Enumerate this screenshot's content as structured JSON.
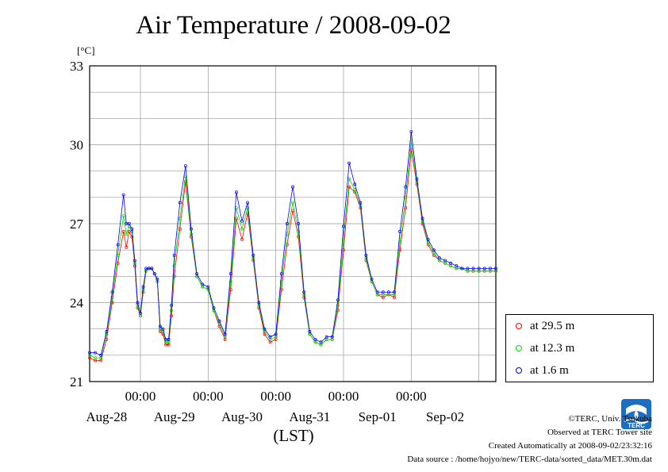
{
  "header": {
    "title": "Air Temperature / 2008-09-02",
    "unit": "[°C]",
    "xlabel": "(LST)"
  },
  "legend": {
    "items": [
      {
        "label": "at 29.5 m",
        "color": "#ff0000"
      },
      {
        "label": "at 12.3 m",
        "color": "#00dd00"
      },
      {
        "label": "at 1.6 m",
        "color": "#0000ff"
      }
    ]
  },
  "footer": {
    "copyright": "©TERC, Univ. Tsukuba",
    "observed": "Observed at TERC Tower site",
    "created": "Created Automatically at 2008-09-02/23:32:16",
    "source": "Data source : /home/hojyo/new/TERC-data/sorted_data/MET.30m.dat"
  },
  "logo": {
    "text": "TERC",
    "color": "#1a6fc0"
  },
  "chart_data": {
    "type": "line",
    "title": "Air Temperature / 2008-09-02",
    "ylabel": "[°C]",
    "xlabel": "(LST)",
    "ylim": [
      21,
      33
    ],
    "yticks": [
      21,
      24,
      27,
      30,
      33
    ],
    "xlim_hours": [
      0,
      144
    ],
    "top_tick_labels": [
      "00:00",
      "00:00",
      "00:00",
      "00:00",
      "00:00"
    ],
    "day_labels": [
      "Aug-28",
      "Aug-29",
      "Aug-30",
      "Aug-31",
      "Sep-01",
      "Sep-02"
    ],
    "grid": true,
    "legend_position": "right-bottom",
    "series": [
      {
        "name": "at 29.5 m",
        "x": [
          0,
          2,
          4,
          6,
          8,
          10,
          12,
          13,
          14,
          15,
          16,
          17,
          18,
          19,
          20,
          21,
          22,
          23,
          24,
          25,
          26,
          27,
          28,
          29,
          30,
          32,
          34,
          36,
          38,
          40,
          42,
          44,
          46,
          48,
          50,
          52,
          54,
          56,
          58,
          60,
          62,
          64,
          66,
          68,
          70,
          72,
          74,
          76,
          78,
          80,
          82,
          84,
          86,
          88,
          90,
          92,
          94,
          96,
          98,
          100,
          102,
          104,
          106,
          108,
          110,
          112,
          114,
          116,
          118,
          120,
          122,
          124,
          126,
          128,
          130,
          132,
          134,
          136,
          138,
          140,
          142,
          144
        ],
        "values": [
          21.9,
          21.8,
          21.8,
          22.6,
          24.0,
          25.5,
          26.7,
          26.1,
          26.7,
          26.5,
          25.4,
          23.8,
          23.5,
          24.4,
          25.2,
          25.3,
          25.3,
          25.1,
          24.8,
          22.9,
          22.8,
          22.4,
          22.4,
          23.5,
          25.0,
          26.8,
          28.6,
          26.5,
          25.0,
          24.6,
          24.5,
          23.7,
          23.1,
          22.6,
          24.5,
          27.2,
          26.4,
          27.4,
          25.6,
          23.8,
          22.8,
          22.5,
          22.6,
          24.5,
          26.2,
          27.5,
          26.5,
          24.2,
          22.8,
          22.5,
          22.4,
          22.6,
          22.6,
          23.7,
          26.0,
          28.4,
          28.2,
          27.6,
          25.6,
          24.8,
          24.3,
          24.2,
          24.3,
          24.2,
          26.0,
          27.6,
          29.8,
          28.5,
          27.0,
          26.2,
          25.8,
          25.6,
          25.5,
          25.4,
          25.3,
          25.3,
          25.2,
          25.2,
          25.2,
          25.2,
          25.2,
          25.2
        ]
      },
      {
        "name": "at 12.3 m",
        "x": [
          0,
          2,
          4,
          6,
          8,
          10,
          12,
          13,
          14,
          15,
          16,
          17,
          18,
          19,
          20,
          21,
          22,
          23,
          24,
          25,
          26,
          27,
          28,
          29,
          30,
          32,
          34,
          36,
          38,
          40,
          42,
          44,
          46,
          48,
          50,
          52,
          54,
          56,
          58,
          60,
          62,
          64,
          66,
          68,
          70,
          72,
          74,
          76,
          78,
          80,
          82,
          84,
          86,
          88,
          90,
          92,
          94,
          96,
          98,
          100,
          102,
          104,
          106,
          108,
          110,
          112,
          114,
          116,
          118,
          120,
          122,
          124,
          126,
          128,
          130,
          132,
          134,
          136,
          138,
          140,
          142,
          144
        ],
        "values": [
          22.0,
          21.9,
          21.9,
          22.8,
          24.2,
          25.8,
          27.3,
          26.6,
          26.9,
          26.7,
          25.5,
          23.9,
          23.5,
          24.5,
          25.2,
          25.3,
          25.3,
          25.1,
          24.8,
          23.0,
          22.9,
          22.5,
          22.5,
          23.7,
          25.4,
          27.2,
          28.8,
          26.6,
          25.0,
          24.6,
          24.5,
          23.7,
          23.2,
          22.7,
          24.8,
          27.6,
          26.8,
          27.6,
          25.7,
          23.9,
          22.9,
          22.6,
          22.7,
          24.8,
          26.6,
          27.8,
          26.7,
          24.3,
          22.8,
          22.5,
          22.4,
          22.6,
          22.6,
          23.9,
          26.4,
          28.7,
          28.3,
          27.7,
          25.7,
          24.8,
          24.3,
          24.3,
          24.3,
          24.3,
          26.3,
          28.0,
          30.1,
          28.6,
          27.1,
          26.3,
          25.9,
          25.6,
          25.5,
          25.4,
          25.3,
          25.3,
          25.2,
          25.2,
          25.2,
          25.2,
          25.2,
          25.2
        ]
      },
      {
        "name": "at 1.6 m",
        "x": [
          0,
          2,
          4,
          6,
          8,
          10,
          12,
          13,
          14,
          15,
          16,
          17,
          18,
          19,
          20,
          21,
          22,
          23,
          24,
          25,
          26,
          27,
          28,
          29,
          30,
          32,
          34,
          36,
          38,
          40,
          42,
          44,
          46,
          48,
          50,
          52,
          54,
          56,
          58,
          60,
          62,
          64,
          66,
          68,
          70,
          72,
          74,
          76,
          78,
          80,
          82,
          84,
          86,
          88,
          90,
          92,
          94,
          96,
          98,
          100,
          102,
          104,
          106,
          108,
          110,
          112,
          114,
          116,
          118,
          120,
          122,
          124,
          126,
          128,
          130,
          132,
          134,
          136,
          138,
          140,
          142,
          144
        ],
        "values": [
          22.1,
          22.1,
          22.0,
          22.9,
          24.4,
          26.2,
          28.1,
          27.0,
          27.0,
          26.8,
          25.6,
          24.0,
          23.6,
          24.6,
          25.3,
          25.3,
          25.3,
          25.1,
          24.9,
          23.1,
          23.0,
          22.6,
          22.6,
          23.9,
          25.8,
          27.8,
          29.2,
          26.8,
          25.1,
          24.7,
          24.6,
          23.8,
          23.3,
          22.8,
          25.1,
          28.2,
          27.1,
          27.8,
          25.8,
          24.0,
          23.0,
          22.7,
          22.8,
          25.1,
          27.0,
          28.4,
          27.0,
          24.4,
          22.9,
          22.6,
          22.5,
          22.7,
          22.7,
          24.1,
          26.9,
          29.3,
          28.5,
          27.8,
          25.8,
          24.9,
          24.4,
          24.4,
          24.4,
          24.4,
          26.7,
          28.4,
          30.5,
          28.7,
          27.2,
          26.4,
          26.0,
          25.7,
          25.6,
          25.5,
          25.4,
          25.3,
          25.3,
          25.3,
          25.3,
          25.3,
          25.3,
          25.3
        ]
      }
    ]
  }
}
